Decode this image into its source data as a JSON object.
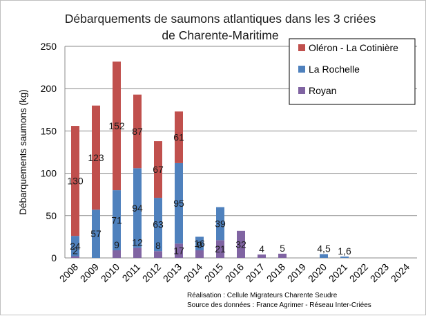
{
  "chart_data": {
    "type": "bar",
    "stacked": true,
    "title_line1": "Débarquements de saumons atlantiques dans les 3 criées",
    "title_line2": "de Charente-Maritime",
    "ylabel": "Débarquements saumons (kg)",
    "xlabel": "",
    "ylim": [
      0,
      250
    ],
    "yticks": [
      0,
      50,
      100,
      150,
      200,
      250
    ],
    "grid": true,
    "legend_position": "top-right",
    "categories": [
      "2008",
      "2009",
      "2010",
      "2011",
      "2012",
      "2013",
      "2014",
      "2015",
      "2016",
      "2017",
      "2018",
      "2019",
      "2020",
      "2021",
      "2022",
      "2023",
      "2024"
    ],
    "series": [
      {
        "name": "Royan",
        "color": "#8064a2",
        "values": [
          2,
          0,
          9,
          12,
          8,
          17,
          9,
          21,
          32,
          4,
          5,
          0,
          0,
          0,
          0,
          0,
          0
        ],
        "labels": [
          "2",
          "",
          "9",
          "12",
          "8",
          "17",
          "9",
          "21",
          "32",
          "4",
          "5",
          "",
          "",
          "",
          "",
          "",
          ""
        ]
      },
      {
        "name": "La Rochelle",
        "color": "#4f81bd",
        "values": [
          24,
          57,
          71,
          94,
          63,
          95,
          16,
          39,
          0,
          0,
          0,
          0,
          4.5,
          1.6,
          0,
          0,
          0
        ],
        "labels": [
          "24",
          "57",
          "71",
          "94",
          "63",
          "95",
          "16",
          "39",
          "",
          "",
          "",
          "",
          "4,5",
          "1,6",
          "",
          "",
          ""
        ]
      },
      {
        "name": "Oléron - La Cotinière",
        "color": "#c0504d",
        "values": [
          130,
          123,
          152,
          87,
          67,
          61,
          0,
          0,
          0,
          0,
          0,
          0,
          0,
          0,
          0,
          0,
          0
        ],
        "labels": [
          "130",
          "123",
          "152",
          "87",
          "67",
          "61",
          "",
          "",
          "",
          "",
          "",
          "",
          "",
          "",
          "",
          "",
          ""
        ]
      }
    ],
    "legend_order": [
      "Oléron - La Cotinière",
      "La Rochelle",
      "Royan"
    ],
    "notes": [
      "Réalisation : Cellule Migrateurs Charente Seudre",
      "Source des données : France Agrimer - Réseau Inter-Criées"
    ]
  }
}
